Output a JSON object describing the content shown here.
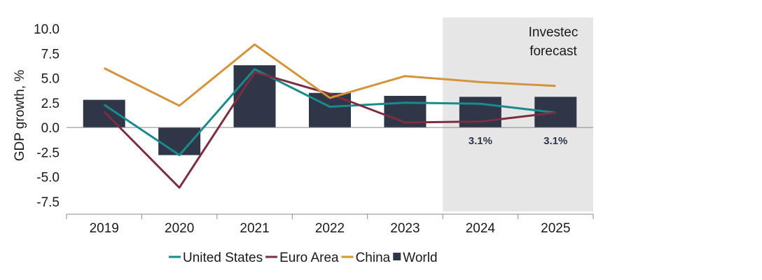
{
  "chart_data": {
    "type": "bar",
    "categories": [
      "2019",
      "2020",
      "2021",
      "2022",
      "2023",
      "2024",
      "2025"
    ],
    "ylabel": "GDP growth, %",
    "xlabel": "",
    "ylim": [
      -8.5,
      10.0
    ],
    "yticks": [
      "10.0",
      "7.5",
      "5.0",
      "2.5",
      "0.0",
      "-2.5",
      "-5.0",
      "-7.5"
    ],
    "ytick_values": [
      10.0,
      7.5,
      5.0,
      2.5,
      0.0,
      -2.5,
      -5.0,
      -7.5
    ],
    "bar_series": {
      "name": "World",
      "values": [
        2.8,
        -2.8,
        6.3,
        3.5,
        3.2,
        3.1,
        3.1
      ],
      "color": "#2e3648"
    },
    "line_series": [
      {
        "name": "United States",
        "values": [
          2.3,
          -2.8,
          5.9,
          2.1,
          2.5,
          2.4,
          1.5
        ],
        "color": "#1a8a8a"
      },
      {
        "name": "Euro Area",
        "values": [
          1.6,
          -6.1,
          5.6,
          3.4,
          0.5,
          0.6,
          1.5
        ],
        "color": "#7b2e40"
      },
      {
        "name": "China",
        "values": [
          6.0,
          2.2,
          8.4,
          3.0,
          5.2,
          4.6,
          4.2
        ],
        "color": "#d4943a"
      }
    ],
    "forecast_region": {
      "label_line1": "Investec",
      "label_line2": "forecast",
      "start": "2024",
      "color": "#e6e6e6"
    },
    "data_labels": [
      {
        "category": "2024",
        "text": "3.1%"
      },
      {
        "category": "2025",
        "text": "3.1%"
      }
    ],
    "legend": [
      "United States",
      "Euro Area",
      "China",
      "World"
    ],
    "legend_position": "bottom"
  }
}
